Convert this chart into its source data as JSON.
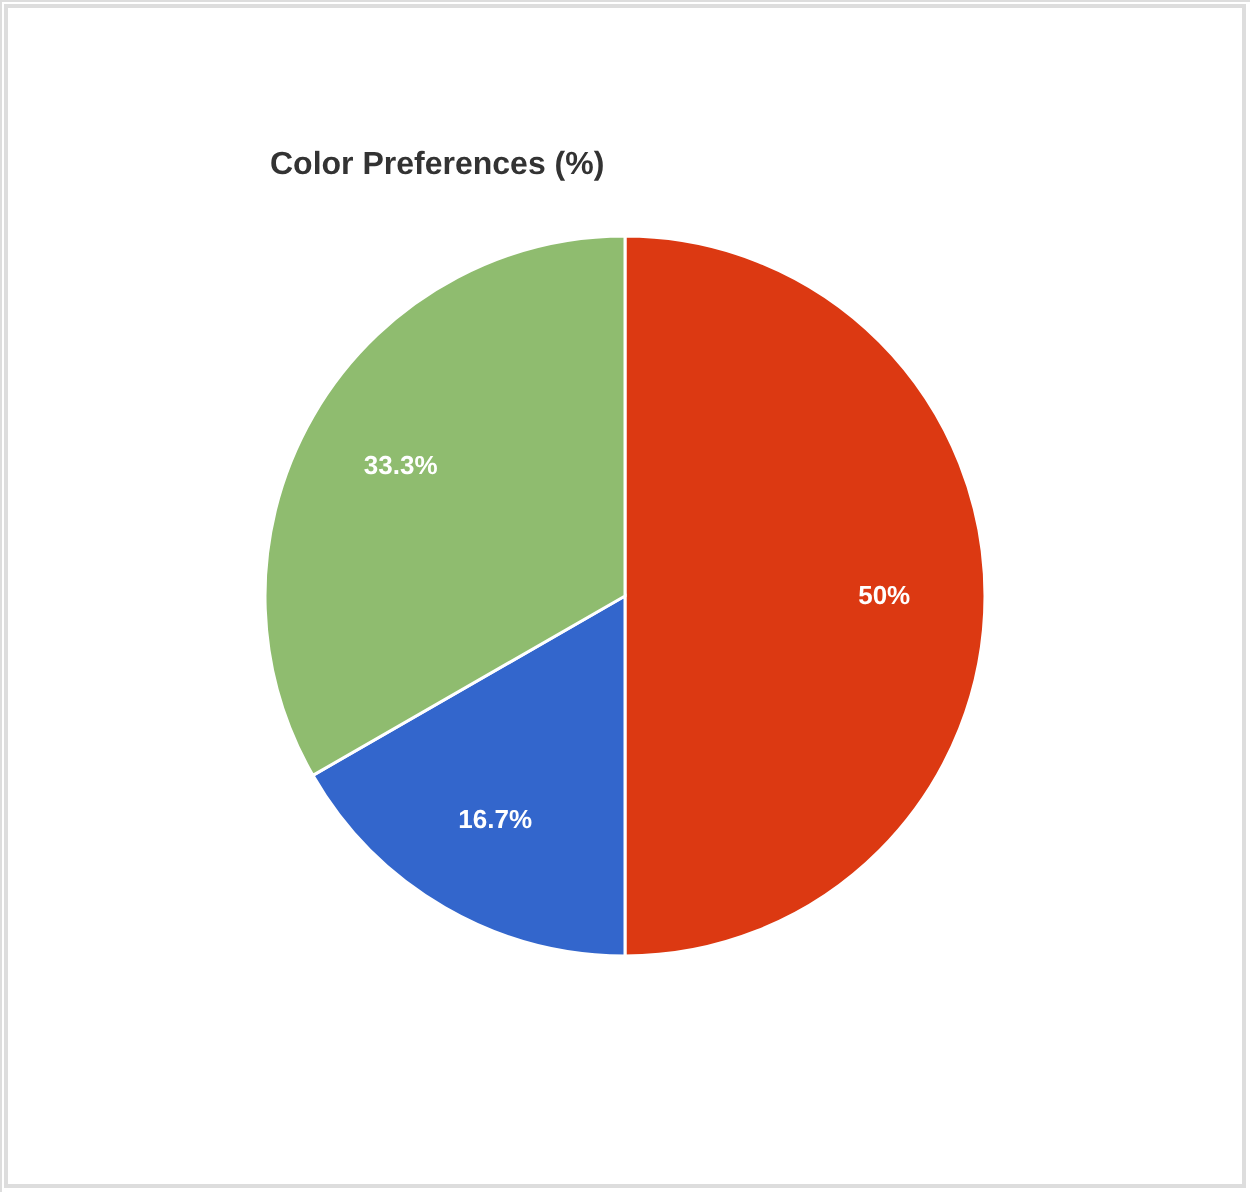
{
  "chart_data": {
    "type": "pie",
    "title": "Color Preferences (%)",
    "categories": [
      null,
      null,
      null
    ],
    "values": [
      50,
      16.7,
      33.3
    ],
    "colors": [
      "#dc3912",
      "#3366cc",
      "#8fbc6f"
    ],
    "value_labels": [
      "50%",
      "16.7%",
      "33.3%"
    ]
  }
}
